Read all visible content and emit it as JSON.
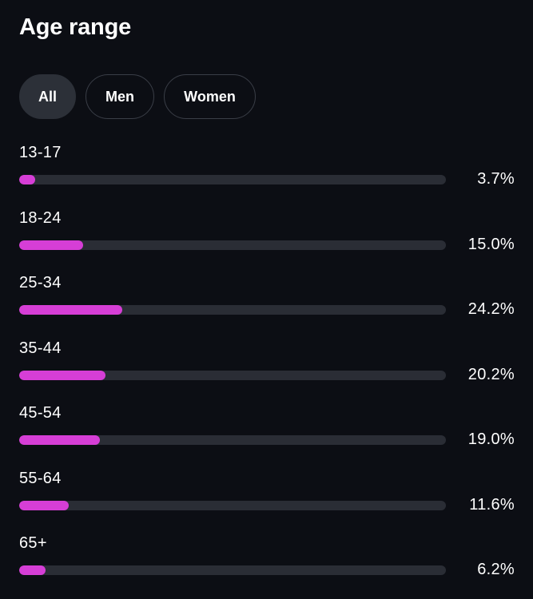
{
  "header": {
    "title": "Age range"
  },
  "filters": [
    {
      "label": "All",
      "active": true
    },
    {
      "label": "Men",
      "active": false
    },
    {
      "label": "Women",
      "active": false
    }
  ],
  "colors": {
    "accent": "#d63ed6",
    "track": "#2a2d35",
    "background": "#0c0e14"
  },
  "rows": [
    {
      "label": "13-17",
      "percent_text": "3.7%",
      "value": 3.7
    },
    {
      "label": "18-24",
      "percent_text": "15.0%",
      "value": 15.0
    },
    {
      "label": "25-34",
      "percent_text": "24.2%",
      "value": 24.2
    },
    {
      "label": "35-44",
      "percent_text": "20.2%",
      "value": 20.2
    },
    {
      "label": "45-54",
      "percent_text": "19.0%",
      "value": 19.0
    },
    {
      "label": "55-64",
      "percent_text": "11.6%",
      "value": 11.6
    },
    {
      "label": "65+",
      "percent_text": "6.2%",
      "value": 6.2
    }
  ]
}
